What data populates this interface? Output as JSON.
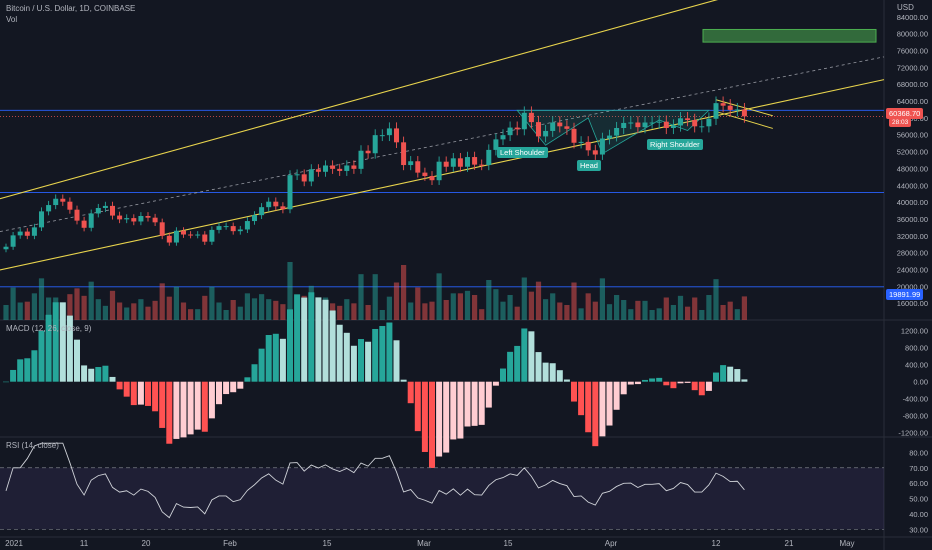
{
  "header": {
    "symbol_line": "Bitcoin / U.S. Dollar, 1D, COINBASE",
    "vol_label": "Vol",
    "currency": "USD"
  },
  "macd_label": "MACD (12, 26, close, 9)",
  "rsi_label": "RSI (14, close)",
  "pattern_labels": {
    "left_shoulder": "Left Shoulder",
    "head": "Head",
    "right_shoulder": "Right Shoulder"
  },
  "price_badges": {
    "last_price": "60368.70",
    "countdown": "28:03",
    "blue_line": "19891.99"
  },
  "colors": {
    "up": "#26a69a",
    "down": "#ef5350",
    "channel": "#e8d44d",
    "hline": "#2962ff",
    "rsi": "#cfd2d8",
    "rsi_band": "#7e57c2",
    "target_box": "#4caf50"
  },
  "chart_data": [
    {
      "type": "candlestick",
      "title": "Bitcoin / U.S. Dollar, 1D, COINBASE",
      "ylim": [
        12000,
        88000
      ],
      "y_ticks": [
        16000,
        20000,
        24000,
        28000,
        32000,
        36000,
        40000,
        44000,
        48000,
        52000,
        56000,
        60000,
        64000,
        68000,
        72000,
        76000,
        80000,
        84000
      ],
      "y_tick_labels": [
        "16000.00",
        "20000.00",
        "24000.00",
        "28000.00",
        "32000.00",
        "36000.00",
        "40000.00",
        "44000.00",
        "48000.00",
        "52000.00",
        "56000.00",
        "60000.00",
        "64000.00",
        "68000.00",
        "72000.00",
        "76000.00",
        "80000.00",
        "84000.00"
      ],
      "x_tick_labels": [
        "2021",
        "11",
        "20",
        "Feb",
        "15",
        "Mar",
        "15",
        "Apr",
        "12",
        "21",
        "May"
      ],
      "closes": [
        29400,
        32100,
        33000,
        32000,
        34000,
        37800,
        39300,
        40800,
        40100,
        38200,
        35600,
        33900,
        37300,
        38600,
        39100,
        36800,
        35900,
        36200,
        35400,
        36700,
        36300,
        35200,
        32000,
        30400,
        33200,
        32300,
        32200,
        32300,
        30600,
        33400,
        34300,
        34300,
        33100,
        33500,
        35500,
        36900,
        38800,
        40100,
        39000,
        38300,
        46400,
        46600,
        44900,
        47800,
        47200,
        48700,
        47900,
        47400,
        48700,
        47900,
        52200,
        51600,
        55900,
        55900,
        57500,
        54200,
        48800,
        49700,
        47000,
        46200,
        45200,
        49600,
        48400,
        50400,
        48400,
        50700,
        48900,
        48800,
        52400,
        54900,
        55900,
        57700,
        57300,
        61200,
        59000,
        55600,
        56900,
        58900,
        58000,
        57400,
        54100,
        54300,
        52300,
        51300,
        55100,
        55800,
        57600,
        58800,
        58900,
        57800,
        58900,
        58900,
        59100,
        57600,
        58200,
        59900,
        59500,
        58000,
        58000,
        59800,
        63500,
        62900,
        61900,
        62000,
        60368
      ],
      "volume_scale": "relative",
      "horizontal_lines": [
        61800,
        42300,
        19891.99
      ],
      "target_zone": [
        78000,
        81000
      ],
      "last_price": 60368.7
    },
    {
      "type": "bar",
      "title": "MACD (12, 26, close, 9)",
      "ylim": [
        -1300,
        1450
      ],
      "y_ticks": [
        1200,
        800,
        400,
        0,
        -400,
        -800,
        -1200
      ],
      "y_tick_labels": [
        "1200.00",
        "800.00",
        "400.00",
        "0.00",
        "-400.00",
        "-800.00",
        "-1200.00"
      ]
    },
    {
      "type": "line",
      "title": "RSI (14, close)",
      "ylim": [
        25,
        90
      ],
      "y_ticks": [
        80,
        70,
        60,
        50,
        40,
        30
      ],
      "y_tick_labels": [
        "80.00",
        "70.00",
        "60.00",
        "50.00",
        "40.00",
        "30.00"
      ],
      "band": [
        30,
        70
      ]
    }
  ]
}
